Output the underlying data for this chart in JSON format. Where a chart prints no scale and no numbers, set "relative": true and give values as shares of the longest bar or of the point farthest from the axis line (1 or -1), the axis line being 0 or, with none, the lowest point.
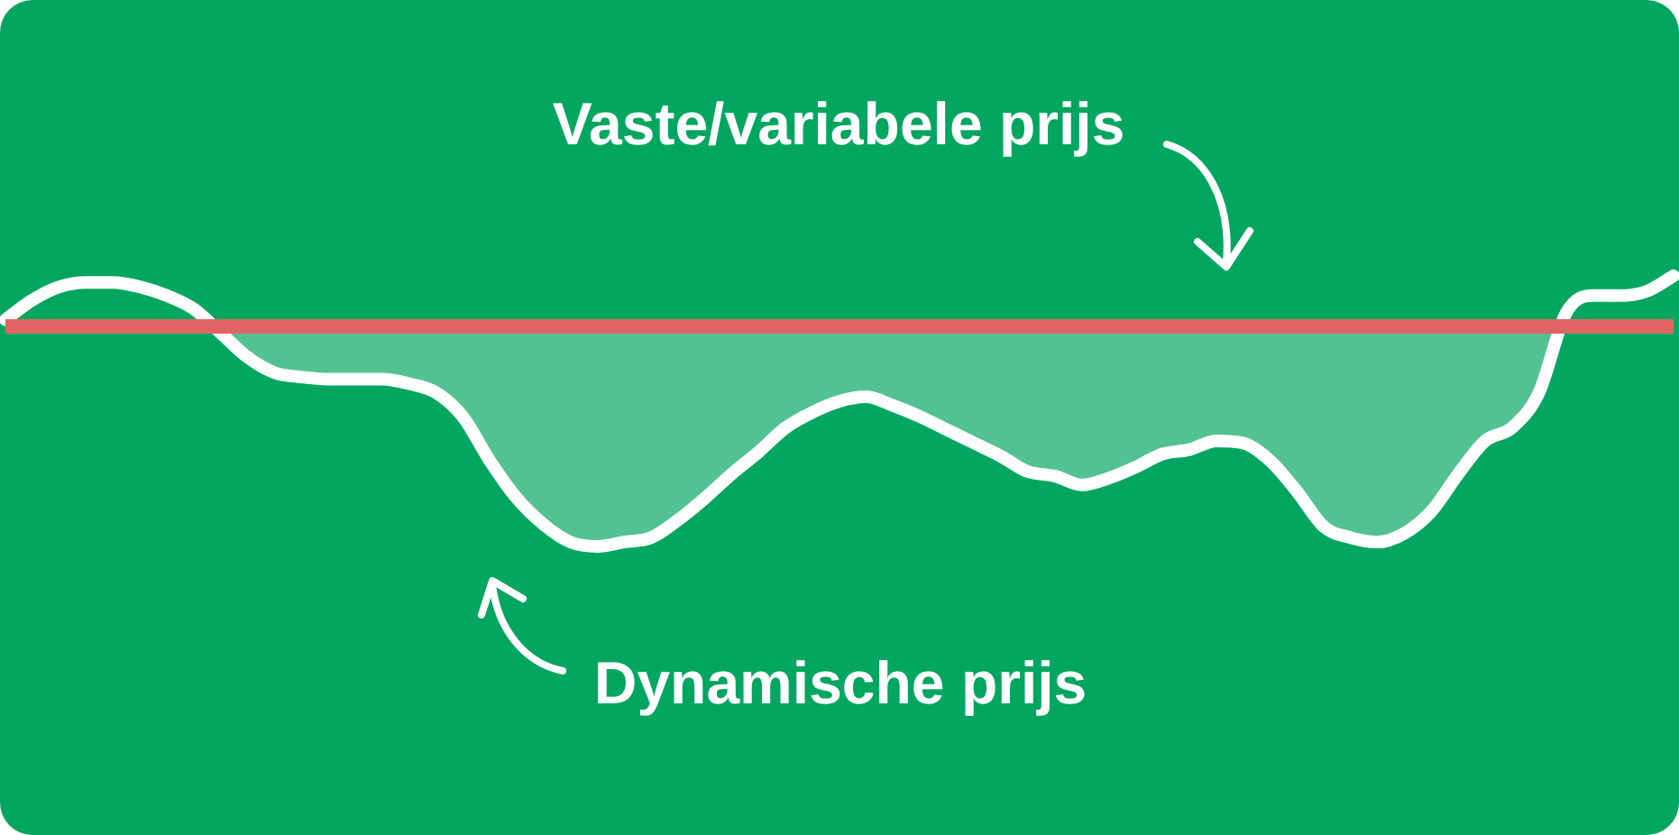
{
  "chart_data": {
    "type": "line",
    "relative": true,
    "categories": [
      null,
      null,
      null,
      null,
      null,
      null,
      null,
      null,
      null,
      null,
      null,
      null,
      null,
      null,
      null,
      null,
      null,
      null,
      null,
      null,
      null,
      null,
      null,
      null,
      null,
      null,
      null,
      null,
      null,
      null,
      null,
      null,
      null,
      null,
      null,
      null,
      null,
      null,
      null,
      null,
      null,
      null,
      null,
      null,
      null,
      null,
      null,
      null,
      null,
      null,
      null,
      null,
      null,
      null,
      null,
      null,
      null,
      null,
      null,
      null,
      null,
      null,
      null
    ],
    "series": [
      {
        "name": "Dynamische prijs",
        "color": "#ffffff",
        "values": [
          0.03,
          0.12,
          0.18,
          0.2,
          0.2,
          0.18,
          0.14,
          0.08,
          -0.03,
          -0.14,
          -0.21,
          -0.23,
          -0.24,
          -0.24,
          -0.24,
          -0.26,
          -0.3,
          -0.41,
          -0.61,
          -0.78,
          -0.9,
          -0.98,
          -1,
          -0.98,
          -0.96,
          -0.88,
          -0.78,
          -0.67,
          -0.57,
          -0.46,
          -0.39,
          -0.34,
          -0.32,
          -0.36,
          -0.41,
          -0.47,
          -0.53,
          -0.59,
          -0.66,
          -0.68,
          -0.72,
          -0.69,
          -0.64,
          -0.58,
          -0.56,
          -0.52,
          -0.53,
          -0.61,
          -0.75,
          -0.91,
          -0.96,
          -0.98,
          -0.94,
          -0.84,
          -0.67,
          -0.52,
          -0.46,
          -0.3,
          0.06,
          0.14,
          0.14,
          0.16,
          0.23
        ],
        "lower": [
          null,
          null,
          null,
          null,
          null,
          null,
          null,
          0,
          -0.03,
          -0.14,
          -0.21,
          -0.23,
          -0.24,
          -0.24,
          -0.24,
          -0.26,
          -0.3,
          -0.41,
          -0.61,
          -0.78,
          -0.9,
          -0.98,
          -1,
          -0.98,
          -0.96,
          -0.88,
          -0.78,
          -0.67,
          -0.57,
          -0.46,
          -0.39,
          -0.34,
          -0.32,
          -0.36,
          -0.41,
          -0.47,
          -0.53,
          -0.59,
          -0.66,
          -0.68,
          -0.72,
          -0.69,
          -0.64,
          -0.58,
          -0.56,
          -0.52,
          -0.53,
          -0.61,
          -0.75,
          -0.91,
          -0.96,
          -0.98,
          -0.94,
          -0.84,
          -0.67,
          -0.52,
          -0.46,
          -0.3,
          0,
          null,
          null,
          null,
          null
        ],
        "upper": [
          null,
          null,
          null,
          null,
          null,
          null,
          null,
          0,
          0,
          0,
          0,
          0,
          0,
          0,
          0,
          0,
          0,
          0,
          0,
          0,
          0,
          0,
          0,
          0,
          0,
          0,
          0,
          0,
          0,
          0,
          0,
          0,
          0,
          0,
          0,
          0,
          0,
          0,
          0,
          0,
          0,
          0,
          0,
          0,
          0,
          0,
          0,
          0,
          0,
          0,
          0,
          0,
          0,
          0,
          0,
          0,
          0,
          0,
          0,
          null,
          null,
          null,
          null
        ]
      }
    ],
    "ref_lines": [
      {
        "axis": "y",
        "value": 0,
        "label": "Vaste/variabele prijs",
        "color": "#e06464"
      }
    ],
    "legend": false,
    "grid": false,
    "marker": "none",
    "line_style": "solid"
  }
}
